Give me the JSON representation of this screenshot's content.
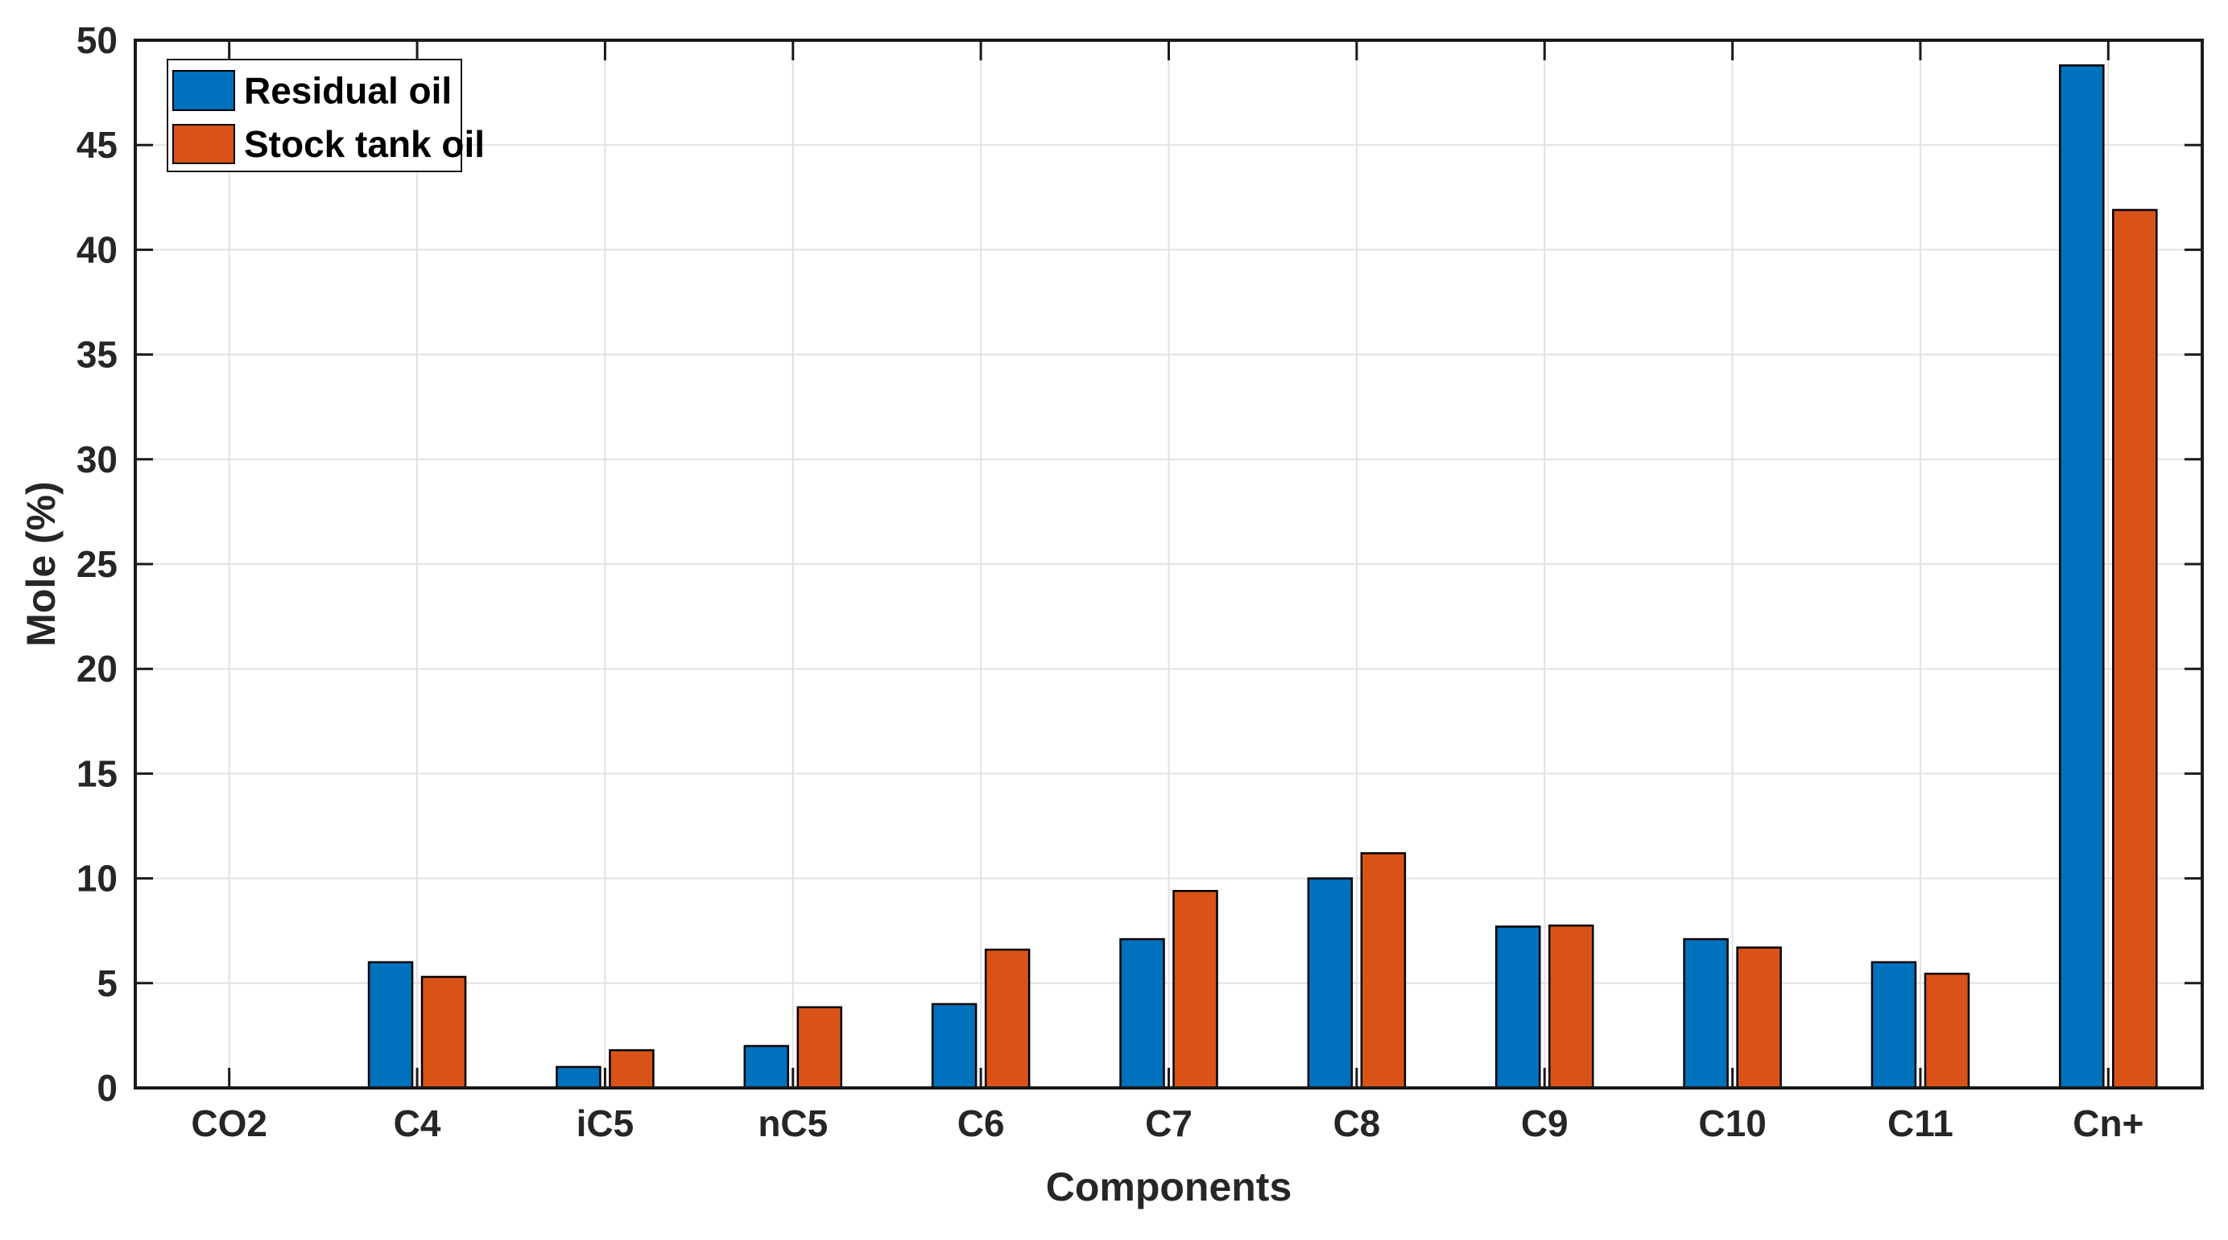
{
  "figure": {
    "background": "#ffffff"
  },
  "chart_data": {
    "type": "bar",
    "title": "",
    "xlabel": "Components",
    "ylabel": "Mole (%)",
    "categories": [
      "CO2",
      "C4",
      "iC5",
      "nC5",
      "C6",
      "C7",
      "C8",
      "C9",
      "C10",
      "C11",
      "Cn+"
    ],
    "series": [
      {
        "name": "Residual oil",
        "color": "#0072BD",
        "values": [
          0,
          6.0,
          1.0,
          2.0,
          4.0,
          7.1,
          10.0,
          7.7,
          7.1,
          6.0,
          48.8
        ]
      },
      {
        "name": "Stock tank oil",
        "color": "#D95319",
        "values": [
          0,
          5.3,
          1.8,
          3.85,
          6.6,
          9.4,
          11.2,
          7.75,
          6.7,
          5.45,
          41.9
        ]
      }
    ],
    "ylim": [
      0,
      50
    ],
    "ytick_step": 5,
    "ytick_labels": [
      "0",
      "5",
      "10",
      "15",
      "20",
      "25",
      "30",
      "35",
      "40",
      "45",
      "50"
    ],
    "grid": true,
    "legend_position": "top-left",
    "legend_entries": [
      "Residual oil",
      "Stock tank oil"
    ],
    "axis_text_color": "#262626",
    "axis_line_color": "#1a1a1a",
    "grid_color": "#e2e2e2",
    "bar_edge_color": "#000000"
  }
}
